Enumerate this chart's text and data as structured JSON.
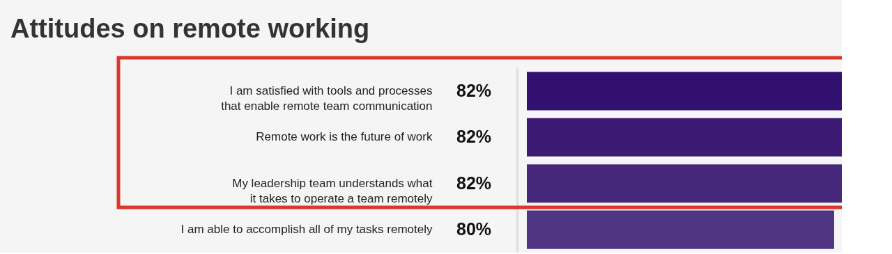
{
  "chart_data": {
    "type": "bar",
    "orientation": "horizontal",
    "title": "Attitudes on remote working",
    "categories": [
      "I am satisfied with tools and processes\nthat enable remote team communication",
      "Remote work is the future of work",
      "My leadership team understands what\nit takes to operate a team remotely",
      "I am able to accomplish all of my tasks remotely"
    ],
    "values": [
      82,
      82,
      82,
      80
    ],
    "value_labels": [
      "82%",
      "82%",
      "82%",
      "80%"
    ],
    "colors": [
      "#321070",
      "#3c1a73",
      "#46287b",
      "#4f3482"
    ],
    "grid": false
  }
}
